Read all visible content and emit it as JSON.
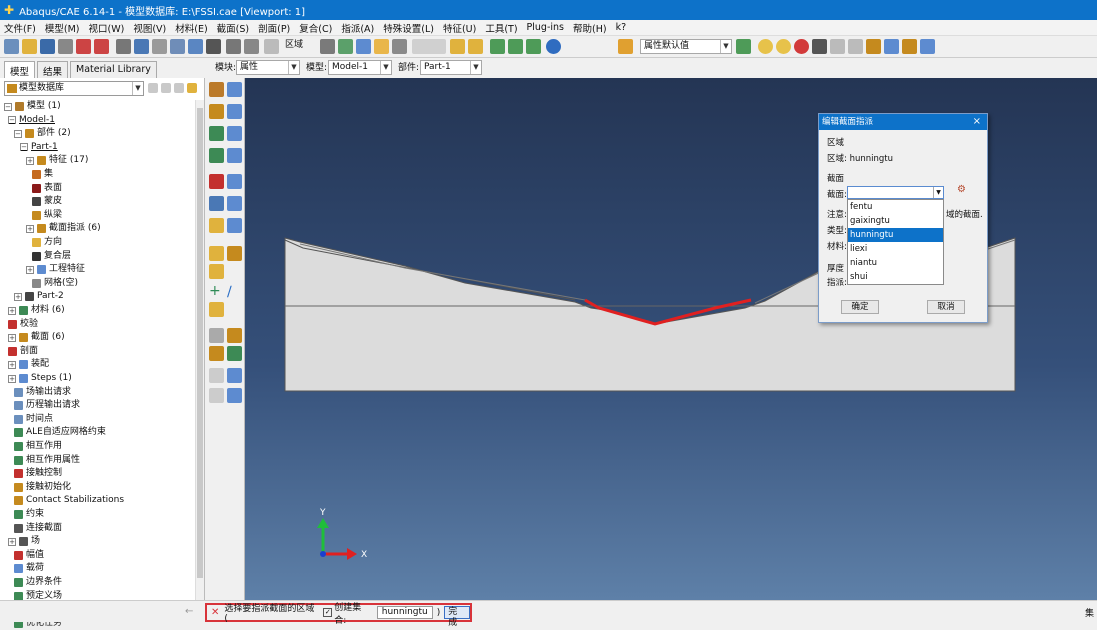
{
  "window": {
    "title": "Abaqus/CAE 6.14-1 - 模型数据库: E:\\FSSI.cae [Viewport: 1]"
  },
  "menubar": [
    "文件(F)",
    "模型(M)",
    "视口(W)",
    "视图(V)",
    "材料(E)",
    "截面(S)",
    "剖面(P)",
    "复合(C)",
    "指派(A)",
    "特殊设置(L)",
    "特征(U)",
    "工具(T)",
    "Plug-ins",
    "帮助(H)",
    "k?"
  ],
  "toolbar": {
    "region_label": "区域",
    "attr_select": "属性默认值"
  },
  "context": {
    "tabs": [
      "模型",
      "结果",
      "Material Library"
    ],
    "module_label": "模块:",
    "module_value": "属性",
    "model_label": "模型:",
    "model_value": "Model-1",
    "part_label": "部件:",
    "part_value": "Part-1"
  },
  "tree": {
    "db_label": "模型数据库",
    "items": [
      {
        "label": "模型 (1)",
        "exp": "−"
      },
      {
        "label": "Model-1",
        "exp": "−"
      },
      {
        "label": "部件 (2)",
        "exp": "−"
      },
      {
        "label": "Part-1",
        "exp": "−"
      },
      {
        "label": "特征 (17)",
        "exp": "+"
      },
      {
        "label": "集",
        "exp": ""
      },
      {
        "label": "表面",
        "exp": ""
      },
      {
        "label": "蒙皮",
        "exp": ""
      },
      {
        "label": "纵梁",
        "exp": ""
      },
      {
        "label": "截面指派 (6)",
        "exp": "+"
      },
      {
        "label": "方向",
        "exp": ""
      },
      {
        "label": "复合层",
        "exp": ""
      },
      {
        "label": "工程特征",
        "exp": "+"
      },
      {
        "label": "网格(空)",
        "exp": ""
      },
      {
        "label": "Part-2",
        "exp": "+"
      },
      {
        "label": "材料 (6)",
        "exp": "+"
      },
      {
        "label": "校验",
        "exp": ""
      },
      {
        "label": "截面 (6)",
        "exp": "+"
      },
      {
        "label": "剖面",
        "exp": ""
      },
      {
        "label": "装配",
        "exp": "+"
      },
      {
        "label": "Steps (1)",
        "exp": "+"
      },
      {
        "label": "场输出请求",
        "exp": ""
      },
      {
        "label": "历程输出请求",
        "exp": ""
      },
      {
        "label": "时间点",
        "exp": ""
      },
      {
        "label": "ALE自适应网格约束",
        "exp": ""
      },
      {
        "label": "相互作用",
        "exp": ""
      },
      {
        "label": "相互作用属性",
        "exp": ""
      },
      {
        "label": "接触控制",
        "exp": ""
      },
      {
        "label": "接触初始化",
        "exp": ""
      },
      {
        "label": "Contact Stabilizations",
        "exp": ""
      },
      {
        "label": "约束",
        "exp": ""
      },
      {
        "label": "连接截面",
        "exp": ""
      },
      {
        "label": "场",
        "exp": "+"
      },
      {
        "label": "幅值",
        "exp": ""
      },
      {
        "label": "载荷",
        "exp": ""
      },
      {
        "label": "边界条件",
        "exp": ""
      },
      {
        "label": "预定义场",
        "exp": ""
      },
      {
        "label": "网格重划分规则",
        "exp": ""
      },
      {
        "label": "优化任务",
        "exp": ""
      }
    ]
  },
  "viewport": {
    "triad_x": "X",
    "triad_y": "Y"
  },
  "dialog": {
    "title": "编辑截面指派",
    "close": "×",
    "region_heading": "区域",
    "region_line": "区域: hunningtu",
    "section_heading": "截面",
    "section_label": "截面:",
    "note_label": "注意:",
    "note_tail": "域的截面.",
    "type_label": "类型:",
    "material_label": "材料:",
    "thickness_label": "厚度",
    "assign_label": "指派:",
    "options": [
      "fentu",
      "gaixingtu",
      "hunningtu",
      "liexi",
      "niantu",
      "shui"
    ],
    "highlighted": "hunningtu",
    "ok": "确定",
    "cancel": "取消"
  },
  "prompt": {
    "text": "选择要指派截面的区域 (",
    "checkbox_label": "创建集合:",
    "field_value": "hunningtu",
    "close_paren": ")",
    "done": "完成",
    "right_indicator": "集"
  },
  "colors": {
    "titlebar": "#0d72c9",
    "highlight_red": "#d8333a",
    "section_line": "#e02020"
  }
}
